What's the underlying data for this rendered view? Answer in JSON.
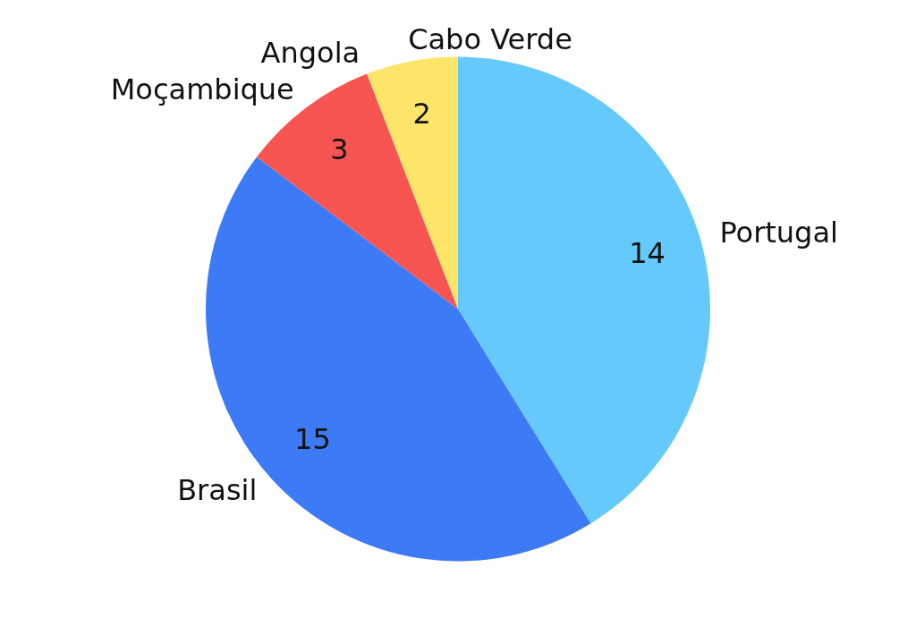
{
  "chart_data": {
    "type": "pie",
    "categories": [
      "Portugal",
      "Brasil",
      "Moçambique",
      "Angola",
      "Cabo Verde"
    ],
    "values": [
      14,
      15,
      3,
      0,
      2
    ],
    "colors": [
      "#66c9fc",
      "#3d7af5",
      "#f75551",
      "#f75551",
      "#fde56a"
    ],
    "value_labels": [
      "14",
      "15",
      "3",
      null,
      "2"
    ],
    "legend": false
  }
}
